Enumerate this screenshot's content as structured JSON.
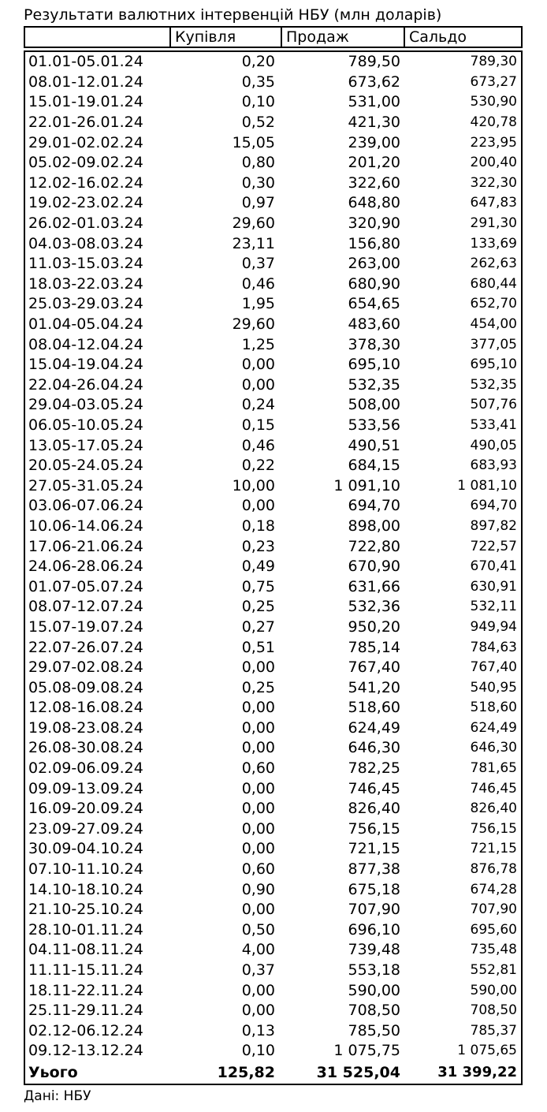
{
  "title": "Результати валютних інтервенцій НБУ (млн доларів)",
  "table": {
    "columns": [
      "",
      "Купівля",
      "Продаж",
      "Сальдо"
    ],
    "rows": [
      [
        "01.01-05.01.24",
        "0,20",
        "789,50",
        "789,30"
      ],
      [
        "08.01-12.01.24",
        "0,35",
        "673,62",
        "673,27"
      ],
      [
        "15.01-19.01.24",
        "0,10",
        "531,00",
        "530,90"
      ],
      [
        "22.01-26.01.24",
        "0,52",
        "421,30",
        "420,78"
      ],
      [
        "29.01-02.02.24",
        "15,05",
        "239,00",
        "223,95"
      ],
      [
        "05.02-09.02.24",
        "0,80",
        "201,20",
        "200,40"
      ],
      [
        "12.02-16.02.24",
        "0,30",
        "322,60",
        "322,30"
      ],
      [
        "19.02-23.02.24",
        "0,97",
        "648,80",
        "647,83"
      ],
      [
        "26.02-01.03.24",
        "29,60",
        "320,90",
        "291,30"
      ],
      [
        "04.03-08.03.24",
        "23,11",
        "156,80",
        "133,69"
      ],
      [
        "11.03-15.03.24",
        "0,37",
        "263,00",
        "262,63"
      ],
      [
        "18.03-22.03.24",
        "0,46",
        "680,90",
        "680,44"
      ],
      [
        "25.03-29.03.24",
        "1,95",
        "654,65",
        "652,70"
      ],
      [
        "01.04-05.04.24",
        "29,60",
        "483,60",
        "454,00"
      ],
      [
        "08.04-12.04.24",
        "1,25",
        "378,30",
        "377,05"
      ],
      [
        "15.04-19.04.24",
        "0,00",
        "695,10",
        "695,10"
      ],
      [
        "22.04-26.04.24",
        "0,00",
        "532,35",
        "532,35"
      ],
      [
        "29.04-03.05.24",
        "0,24",
        "508,00",
        "507,76"
      ],
      [
        "06.05-10.05.24",
        "0,15",
        "533,56",
        "533,41"
      ],
      [
        "13.05-17.05.24",
        "0,46",
        "490,51",
        "490,05"
      ],
      [
        "20.05-24.05.24",
        "0,22",
        "684,15",
        "683,93"
      ],
      [
        "27.05-31.05.24",
        "10,00",
        "1 091,10",
        "1 081,10"
      ],
      [
        "03.06-07.06.24",
        "0,00",
        "694,70",
        "694,70"
      ],
      [
        "10.06-14.06.24",
        "0,18",
        "898,00",
        "897,82"
      ],
      [
        "17.06-21.06.24",
        "0,23",
        "722,80",
        "722,57"
      ],
      [
        "24.06-28.06.24",
        "0,49",
        "670,90",
        "670,41"
      ],
      [
        "01.07-05.07.24",
        "0,75",
        "631,66",
        "630,91"
      ],
      [
        "08.07-12.07.24",
        "0,25",
        "532,36",
        "532,11"
      ],
      [
        "15.07-19.07.24",
        "0,27",
        "950,20",
        "949,94"
      ],
      [
        "22.07-26.07.24",
        "0,51",
        "785,14",
        "784,63"
      ],
      [
        "29.07-02.08.24",
        "0,00",
        "767,40",
        "767,40"
      ],
      [
        "05.08-09.08.24",
        "0,25",
        "541,20",
        "540,95"
      ],
      [
        "12.08-16.08.24",
        "0,00",
        "518,60",
        "518,60"
      ],
      [
        "19.08-23.08.24",
        "0,00",
        "624,49",
        "624,49"
      ],
      [
        "26.08-30.08.24",
        "0,00",
        "646,30",
        "646,30"
      ],
      [
        "02.09-06.09.24",
        "0,60",
        "782,25",
        "781,65"
      ],
      [
        "09.09-13.09.24",
        "0,00",
        "746,45",
        "746,45"
      ],
      [
        "16.09-20.09.24",
        "0,00",
        "826,40",
        "826,40"
      ],
      [
        "23.09-27.09.24",
        "0,00",
        "756,15",
        "756,15"
      ],
      [
        "30.09-04.10.24",
        "0,00",
        "721,15",
        "721,15"
      ],
      [
        "07.10-11.10.24",
        "0,60",
        "877,38",
        "876,78"
      ],
      [
        "14.10-18.10.24",
        "0,90",
        "675,18",
        "674,28"
      ],
      [
        "21.10-25.10.24",
        "0,00",
        "707,90",
        "707,90"
      ],
      [
        "28.10-01.11.24",
        "0,50",
        "696,10",
        "695,60"
      ],
      [
        "04.11-08.11.24",
        "4,00",
        "739,48",
        "735,48"
      ],
      [
        "11.11-15.11.24",
        "0,37",
        "553,18",
        "552,81"
      ],
      [
        "18.11-22.11.24",
        "0,00",
        "590,00",
        "590,00"
      ],
      [
        "25.11-29.11.24",
        "0,00",
        "708,50",
        "708,50"
      ],
      [
        "02.12-06.12.24",
        "0,13",
        "785,50",
        "785,37"
      ],
      [
        "09.12-13.12.24",
        "0,10",
        "1 075,75",
        "1 075,65"
      ]
    ],
    "total": [
      "Уього",
      "125,82",
      "31 525,04",
      "31 399,22"
    ]
  },
  "footer": {
    "source": "Дані: НБУ"
  }
}
